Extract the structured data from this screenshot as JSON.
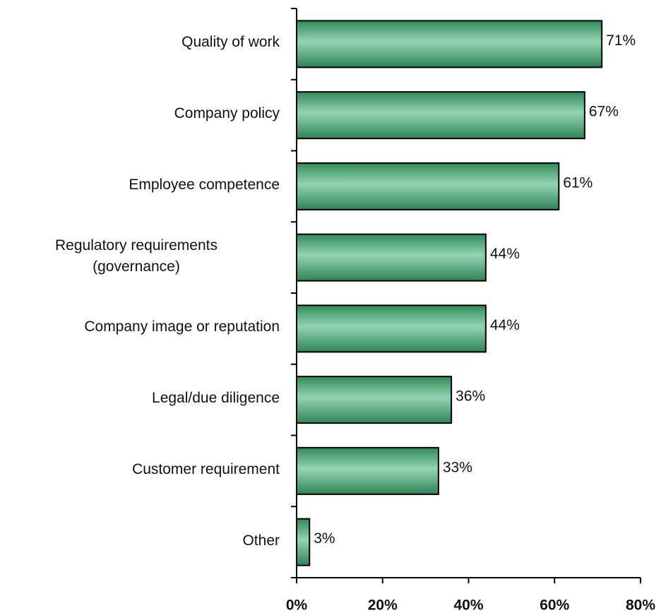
{
  "chart_data": {
    "type": "barh",
    "categories": [
      "Quality of work",
      "Company policy",
      "Employee competence",
      "Regulatory requirements\n(governance)",
      "Company image or reputation",
      "Legal/due diligence",
      "Customer requirement",
      "Other"
    ],
    "values": [
      71,
      67,
      61,
      44,
      44,
      36,
      33,
      3
    ],
    "value_labels": [
      "71%",
      "67%",
      "61%",
      "44%",
      "44%",
      "36%",
      "33%",
      "3%"
    ],
    "color": "#5fb38a",
    "xlim": [
      0,
      80
    ],
    "xticks": [
      {
        "value": 0,
        "label": "0%"
      },
      {
        "value": 20,
        "label": "20%"
      },
      {
        "value": 40,
        "label": "40%"
      },
      {
        "value": 60,
        "label": "60%"
      },
      {
        "value": 80,
        "label": "80%"
      }
    ],
    "grid": false
  }
}
